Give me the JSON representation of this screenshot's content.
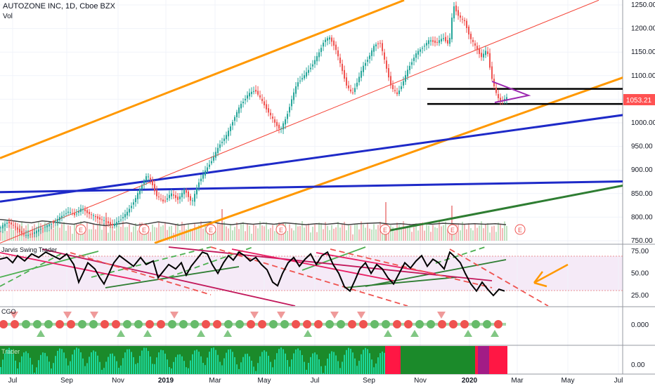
{
  "header": {
    "title": "AUTOZONE INC, 1D, Cboe BZX",
    "volume_label": "Vol"
  },
  "indicators": {
    "swing_label": "Jarvis Swing Trader",
    "cgo_label": "CGO",
    "third_label": "Trader"
  },
  "chart_data": [
    {
      "type": "line",
      "title": "AUTOZONE INC, 1D, Cboe BZX",
      "y_ticks": [
        "1250.00",
        "1200.00",
        "1150.00",
        "1100.00",
        "1050.00",
        "1000.00",
        "950.00",
        "900.00",
        "850.00",
        "800.00",
        "750.00"
      ],
      "ylim": [
        745,
        1260
      ],
      "last_price": "1053.21",
      "x_ticks": [
        "Jul",
        "Sep",
        "Nov",
        "2019",
        "Mar",
        "May",
        "Jul",
        "Sep",
        "Nov",
        "2020",
        "Mar",
        "May",
        "Jul"
      ],
      "earnings_marker": "E",
      "price_points": [
        [
          0,
          778
        ],
        [
          10,
          790
        ],
        [
          18,
          782
        ],
        [
          25,
          772
        ],
        [
          35,
          760
        ],
        [
          45,
          765
        ],
        [
          60,
          778
        ],
        [
          75,
          788
        ],
        [
          85,
          800
        ],
        [
          95,
          812
        ],
        [
          105,
          805
        ],
        [
          115,
          818
        ],
        [
          125,
          808
        ],
        [
          135,
          800
        ],
        [
          150,
          790
        ],
        [
          160,
          782
        ],
        [
          170,
          795
        ],
        [
          180,
          810
        ],
        [
          192,
          840
        ],
        [
          200,
          865
        ],
        [
          208,
          890
        ],
        [
          215,
          872
        ],
        [
          222,
          845
        ],
        [
          232,
          832
        ],
        [
          242,
          850
        ],
        [
          252,
          838
        ],
        [
          262,
          858
        ],
        [
          272,
          830
        ],
        [
          282,
          875
        ],
        [
          292,
          900
        ],
        [
          302,
          925
        ],
        [
          312,
          955
        ],
        [
          322,
          975
        ],
        [
          332,
          1010
        ],
        [
          342,
          1040
        ],
        [
          352,
          1060
        ],
        [
          362,
          1070
        ],
        [
          372,
          1045
        ],
        [
          382,
          1020
        ],
        [
          390,
          1000
        ],
        [
          398,
          985
        ],
        [
          406,
          1010
        ],
        [
          414,
          1050
        ],
        [
          422,
          1085
        ],
        [
          432,
          1100
        ],
        [
          442,
          1120
        ],
        [
          452,
          1145
        ],
        [
          460,
          1175
        ],
        [
          468,
          1180
        ],
        [
          476,
          1160
        ],
        [
          484,
          1120
        ],
        [
          492,
          1080
        ],
        [
          500,
          1060
        ],
        [
          508,
          1090
        ],
        [
          516,
          1120
        ],
        [
          524,
          1140
        ],
        [
          532,
          1165
        ],
        [
          540,
          1170
        ],
        [
          548,
          1120
        ],
        [
          556,
          1075
        ],
        [
          564,
          1060
        ],
        [
          572,
          1085
        ],
        [
          580,
          1115
        ],
        [
          590,
          1145
        ],
        [
          600,
          1160
        ],
        [
          610,
          1175
        ],
        [
          620,
          1170
        ],
        [
          630,
          1180
        ],
        [
          638,
          1165
        ],
        [
          644,
          1250
        ],
        [
          652,
          1225
        ],
        [
          660,
          1215
        ],
        [
          668,
          1180
        ],
        [
          676,
          1160
        ],
        [
          684,
          1140
        ],
        [
          692,
          1155
        ],
        [
          698,
          1100
        ],
        [
          704,
          1065
        ],
        [
          710,
          1045
        ],
        [
          716,
          1050
        ],
        [
          720,
          1053
        ]
      ],
      "volume_line": [
        [
          0,
          795
        ],
        [
          15,
          793
        ],
        [
          30,
          790
        ],
        [
          45,
          788
        ],
        [
          60,
          792
        ],
        [
          75,
          790
        ],
        [
          90,
          787
        ],
        [
          105,
          785
        ],
        [
          120,
          790
        ],
        [
          135,
          785
        ],
        [
          150,
          782
        ],
        [
          165,
          785
        ],
        [
          180,
          788
        ],
        [
          195,
          783
        ],
        [
          210,
          786
        ],
        [
          225,
          790
        ],
        [
          240,
          787
        ],
        [
          255,
          783
        ],
        [
          270,
          786
        ],
        [
          285,
          788
        ],
        [
          300,
          790
        ],
        [
          315,
          786
        ],
        [
          330,
          784
        ],
        [
          345,
          787
        ],
        [
          360,
          785
        ],
        [
          375,
          787
        ],
        [
          390,
          785
        ],
        [
          405,
          788
        ],
        [
          420,
          786
        ],
        [
          435,
          784
        ],
        [
          450,
          786
        ],
        [
          465,
          785
        ],
        [
          480,
          787
        ],
        [
          495,
          784
        ],
        [
          510,
          786
        ],
        [
          525,
          787
        ],
        [
          540,
          788
        ],
        [
          555,
          785
        ],
        [
          570,
          786
        ],
        [
          585,
          784
        ],
        [
          600,
          786
        ],
        [
          615,
          785
        ],
        [
          630,
          787
        ],
        [
          645,
          786
        ],
        [
          660,
          785
        ],
        [
          675,
          786
        ],
        [
          690,
          785
        ],
        [
          705,
          786
        ],
        [
          720,
          784
        ]
      ],
      "trend_lines": {
        "orange": [
          {
            "x1": 0,
            "y1": 925,
            "x2": 575,
            "y2": 1260
          },
          {
            "x1": 220,
            "y1": 745,
            "x2": 932,
            "y2": 1120
          }
        ],
        "red": [
          {
            "x1": 0,
            "y1": 745,
            "x2": 852,
            "y2": 1260
          }
        ],
        "blue": [
          {
            "x1": 0,
            "y1": 833,
            "x2": 932,
            "y2": 1026
          },
          {
            "x1": 0,
            "y1": 853,
            "x2": 932,
            "y2": 877
          }
        ],
        "green": [
          {
            "x1": 548,
            "y1": 770,
            "x2": 932,
            "y2": 880
          }
        ],
        "black": [
          {
            "x1": 608,
            "y1": 1072,
            "x2": 888,
            "y2": 1072
          },
          {
            "x1": 608,
            "y1": 1040,
            "x2": 888,
            "y2": 1040
          }
        ]
      },
      "earnings_x": [
        115,
        205,
        300,
        400,
        548,
        644,
        740
      ]
    },
    {
      "type": "line",
      "title": "Jarvis Swing Trader",
      "y_ticks": [
        "75.00",
        "50.00",
        "25.00"
      ],
      "ylim": [
        10,
        80
      ],
      "series": [
        {
          "values": [
            [
              0,
              66
            ],
            [
              10,
              68
            ],
            [
              18,
              62
            ],
            [
              25,
              70
            ],
            [
              35,
              64
            ],
            [
              45,
              72
            ],
            [
              55,
              68
            ],
            [
              65,
              74
            ],
            [
              75,
              70
            ],
            [
              85,
              66
            ],
            [
              95,
              72
            ],
            [
              105,
              60
            ],
            [
              112,
              40
            ],
            [
              118,
              50
            ],
            [
              125,
              62
            ],
            [
              135,
              55
            ],
            [
              142,
              45
            ],
            [
              148,
              38
            ],
            [
              155,
              50
            ],
            [
              162,
              62
            ],
            [
              170,
              70
            ],
            [
              180,
              64
            ],
            [
              190,
              58
            ],
            [
              200,
              68
            ],
            [
              208,
              60
            ],
            [
              218,
              64
            ],
            [
              225,
              45
            ],
            [
              232,
              52
            ],
            [
              240,
              60
            ],
            [
              250,
              55
            ],
            [
              258,
              62
            ],
            [
              265,
              48
            ],
            [
              272,
              58
            ],
            [
              280,
              66
            ],
            [
              288,
              74
            ],
            [
              295,
              72
            ],
            [
              302,
              60
            ],
            [
              310,
              50
            ],
            [
              318,
              62
            ],
            [
              325,
              70
            ],
            [
              332,
              65
            ],
            [
              340,
              74
            ],
            [
              348,
              70
            ],
            [
              356,
              64
            ],
            [
              364,
              68
            ],
            [
              372,
              60
            ],
            [
              380,
              54
            ],
            [
              388,
              40
            ],
            [
              395,
              36
            ],
            [
              402,
              50
            ],
            [
              410,
              62
            ],
            [
              418,
              68
            ],
            [
              426,
              58
            ],
            [
              434,
              66
            ],
            [
              442,
              72
            ],
            [
              450,
              60
            ],
            [
              458,
              70
            ],
            [
              466,
              74
            ],
            [
              474,
              60
            ],
            [
              482,
              50
            ],
            [
              490,
              35
            ],
            [
              498,
              30
            ],
            [
              505,
              42
            ],
            [
              512,
              55
            ],
            [
              520,
              62
            ],
            [
              528,
              50
            ],
            [
              536,
              60
            ],
            [
              544,
              55
            ],
            [
              552,
              45
            ],
            [
              560,
              38
            ],
            [
              568,
              50
            ],
            [
              576,
              62
            ],
            [
              584,
              56
            ],
            [
              592,
              64
            ],
            [
              600,
              70
            ],
            [
              608,
              58
            ],
            [
              616,
              66
            ],
            [
              624,
              62
            ],
            [
              632,
              55
            ],
            [
              640,
              74
            ],
            [
              648,
              68
            ],
            [
              655,
              62
            ],
            [
              662,
              50
            ],
            [
              670,
              38
            ],
            [
              678,
              30
            ],
            [
              686,
              40
            ],
            [
              694,
              32
            ],
            [
              702,
              25
            ],
            [
              710,
              32
            ],
            [
              718,
              30
            ]
          ]
        }
      ]
    },
    {
      "type": "scatter",
      "title": "CGO",
      "y_ticks": [
        "0.000"
      ]
    },
    {
      "type": "bar",
      "title": "Trader",
      "y_ticks": [
        "0.00"
      ]
    }
  ]
}
